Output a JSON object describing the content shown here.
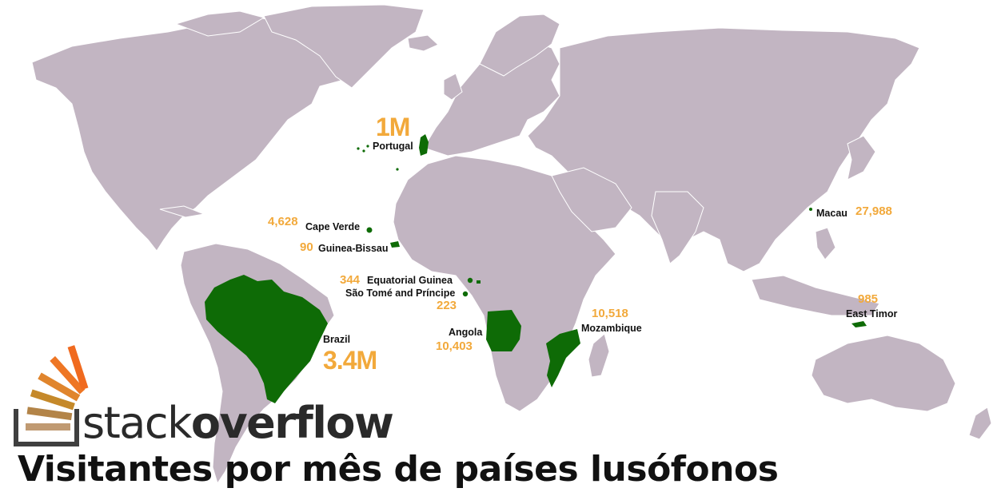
{
  "colors": {
    "land": "#c2b5c2",
    "lusophone": "#0e6b06",
    "value": "#f2a93b",
    "text": "#111111"
  },
  "countries": [
    {
      "id": "portugal",
      "name": "Portugal",
      "visitors": "1M"
    },
    {
      "id": "cape-verde",
      "name": "Cape Verde",
      "visitors": "4,628"
    },
    {
      "id": "guinea-bissau",
      "name": "Guinea-Bissau",
      "visitors": "90"
    },
    {
      "id": "equatorial-guinea",
      "name": "Equatorial  Guinea",
      "visitors": "344"
    },
    {
      "id": "sao-tome",
      "name": "São Tomé and Príncipe",
      "visitors": "223"
    },
    {
      "id": "angola",
      "name": "Angola",
      "visitors": "10,403"
    },
    {
      "id": "mozambique",
      "name": "Mozambique",
      "visitors": "10,518"
    },
    {
      "id": "brazil",
      "name": "Brazil",
      "visitors": "3.4M"
    },
    {
      "id": "macau",
      "name": "Macau",
      "visitors": "27,988"
    },
    {
      "id": "east-timor",
      "name": "East Timor",
      "visitors": "985"
    }
  ],
  "logo": {
    "text_light": "stack",
    "text_bold": "overflow",
    "icon": "stackoverflow-logo-icon"
  },
  "title": "Visitantes por mês de países lusófonos"
}
